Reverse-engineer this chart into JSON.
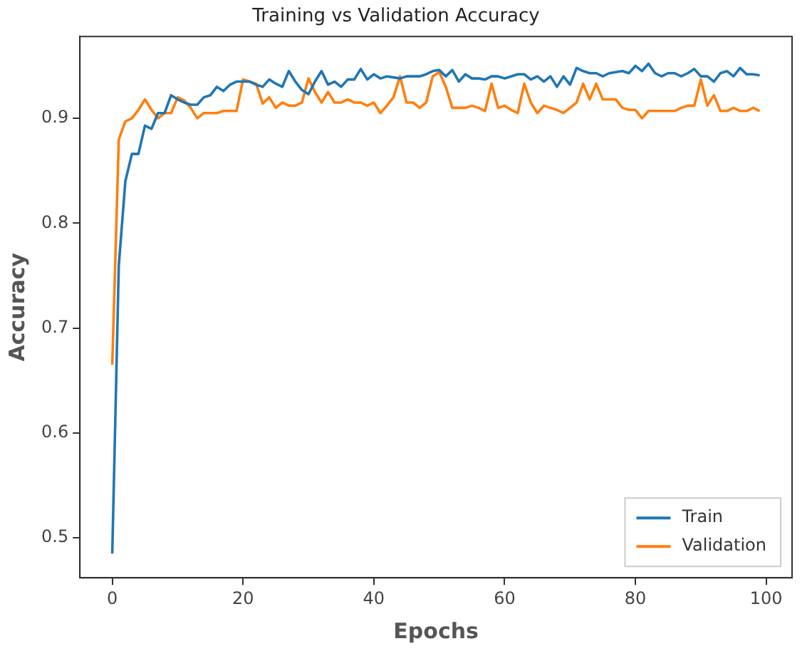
{
  "chart_data": {
    "type": "line",
    "title": "Training vs Validation Accuracy",
    "xlabel": "Epochs",
    "ylabel": "Accuracy",
    "x": [
      0,
      1,
      2,
      3,
      4,
      5,
      6,
      7,
      8,
      9,
      10,
      11,
      12,
      13,
      14,
      15,
      16,
      17,
      18,
      19,
      20,
      21,
      22,
      23,
      24,
      25,
      26,
      27,
      28,
      29,
      30,
      31,
      32,
      33,
      34,
      35,
      36,
      37,
      38,
      39,
      40,
      41,
      42,
      43,
      44,
      45,
      46,
      47,
      48,
      49,
      50,
      51,
      52,
      53,
      54,
      55,
      56,
      57,
      58,
      59,
      60,
      61,
      62,
      63,
      64,
      65,
      66,
      67,
      68,
      69,
      70,
      71,
      72,
      73,
      74,
      75,
      76,
      77,
      78,
      79,
      80,
      81,
      82,
      83,
      84,
      85,
      86,
      87,
      88,
      89,
      90,
      91,
      92,
      93,
      94,
      95,
      96,
      97,
      98,
      99
    ],
    "series": [
      {
        "name": "Train",
        "color": "#1f77b4",
        "values": [
          0.485,
          0.76,
          0.84,
          0.866,
          0.866,
          0.893,
          0.89,
          0.905,
          0.905,
          0.922,
          0.918,
          0.915,
          0.913,
          0.913,
          0.92,
          0.922,
          0.93,
          0.926,
          0.932,
          0.935,
          0.935,
          0.935,
          0.932,
          0.93,
          0.937,
          0.933,
          0.93,
          0.945,
          0.935,
          0.927,
          0.923,
          0.935,
          0.945,
          0.932,
          0.935,
          0.93,
          0.937,
          0.937,
          0.947,
          0.937,
          0.942,
          0.938,
          0.94,
          0.939,
          0.938,
          0.94,
          0.94,
          0.94,
          0.942,
          0.945,
          0.946,
          0.94,
          0.946,
          0.935,
          0.942,
          0.938,
          0.938,
          0.937,
          0.94,
          0.94,
          0.938,
          0.94,
          0.942,
          0.942,
          0.937,
          0.94,
          0.935,
          0.94,
          0.93,
          0.94,
          0.932,
          0.948,
          0.945,
          0.943,
          0.943,
          0.94,
          0.943,
          0.944,
          0.945,
          0.943,
          0.95,
          0.945,
          0.952,
          0.943,
          0.94,
          0.943,
          0.943,
          0.94,
          0.943,
          0.947,
          0.94,
          0.94,
          0.935,
          0.943,
          0.945,
          0.94,
          0.948,
          0.942,
          0.942,
          0.941
        ]
      },
      {
        "name": "Validation",
        "color": "#ff7f0e",
        "values": [
          0.665,
          0.88,
          0.897,
          0.9,
          0.908,
          0.918,
          0.908,
          0.9,
          0.905,
          0.905,
          0.92,
          0.917,
          0.91,
          0.9,
          0.905,
          0.905,
          0.905,
          0.907,
          0.907,
          0.907,
          0.937,
          0.935,
          0.933,
          0.914,
          0.92,
          0.91,
          0.915,
          0.912,
          0.912,
          0.915,
          0.938,
          0.925,
          0.915,
          0.925,
          0.915,
          0.915,
          0.918,
          0.915,
          0.915,
          0.912,
          0.915,
          0.905,
          0.912,
          0.92,
          0.94,
          0.915,
          0.915,
          0.91,
          0.915,
          0.94,
          0.944,
          0.93,
          0.91,
          0.91,
          0.91,
          0.912,
          0.91,
          0.907,
          0.933,
          0.91,
          0.912,
          0.908,
          0.905,
          0.933,
          0.915,
          0.905,
          0.912,
          0.91,
          0.908,
          0.905,
          0.91,
          0.915,
          0.933,
          0.918,
          0.933,
          0.918,
          0.918,
          0.918,
          0.91,
          0.908,
          0.908,
          0.9,
          0.907,
          0.907,
          0.907,
          0.907,
          0.907,
          0.91,
          0.912,
          0.912,
          0.937,
          0.912,
          0.922,
          0.907,
          0.907,
          0.91,
          0.907,
          0.907,
          0.91,
          0.907
        ]
      }
    ],
    "xlim": [
      -4.95,
      103.95
    ],
    "xticks": [
      0,
      20,
      40,
      60,
      80,
      100
    ],
    "ylim": [
      0.462,
      0.978
    ],
    "yticks": [
      0.5,
      0.6,
      0.7,
      0.8,
      0.9
    ],
    "grid": false,
    "legend": "bottom right",
    "marker": "none",
    "line_style": "solid"
  }
}
